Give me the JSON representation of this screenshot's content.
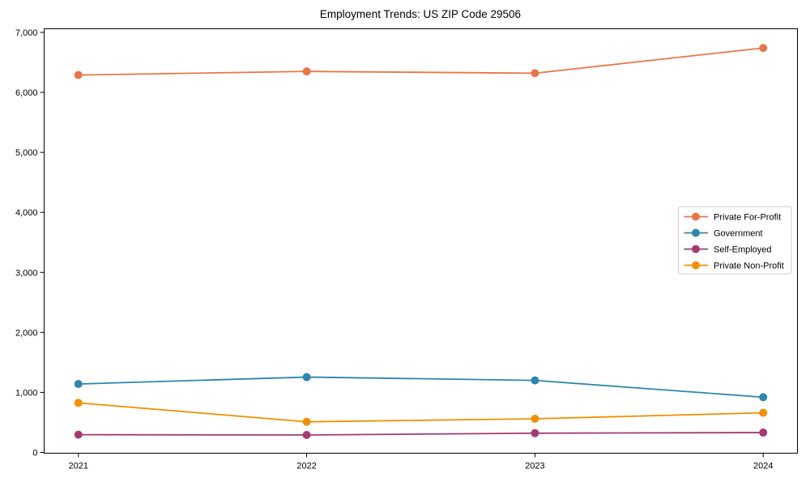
{
  "chart_data": {
    "type": "line",
    "title": "Employment Trends: US ZIP Code 29506",
    "categories": [
      2021,
      2022,
      2023,
      2024
    ],
    "xtick_labels": [
      "2021",
      "2022",
      "2023",
      "2024"
    ],
    "series": [
      {
        "name": "Private For-Profit",
        "color": "#e8764b",
        "values": [
          6290,
          6350,
          6320,
          6740
        ]
      },
      {
        "name": "Government",
        "color": "#2e86ab",
        "values": [
          1140,
          1255,
          1200,
          920
        ]
      },
      {
        "name": "Self-Employed",
        "color": "#a23b72",
        "values": [
          295,
          290,
          320,
          330
        ]
      },
      {
        "name": "Private Non-Profit",
        "color": "#f18f01",
        "values": [
          825,
          510,
          560,
          660
        ]
      }
    ],
    "xlabel": "",
    "ylabel": "",
    "xlim": [
      2020.85,
      2024.15
    ],
    "ylim": [
      0,
      7000
    ],
    "yticks": [
      0,
      1000,
      2000,
      3000,
      4000,
      5000,
      6000,
      7000
    ],
    "ytick_labels": [
      "0",
      "1,000",
      "2,000",
      "3,000",
      "4,000",
      "5,000",
      "6,000",
      "7,000"
    ],
    "grid": false,
    "legend_position": "center right",
    "marker": "circle",
    "axis_color": "#000000",
    "legend_border_color": "#cccccc"
  }
}
